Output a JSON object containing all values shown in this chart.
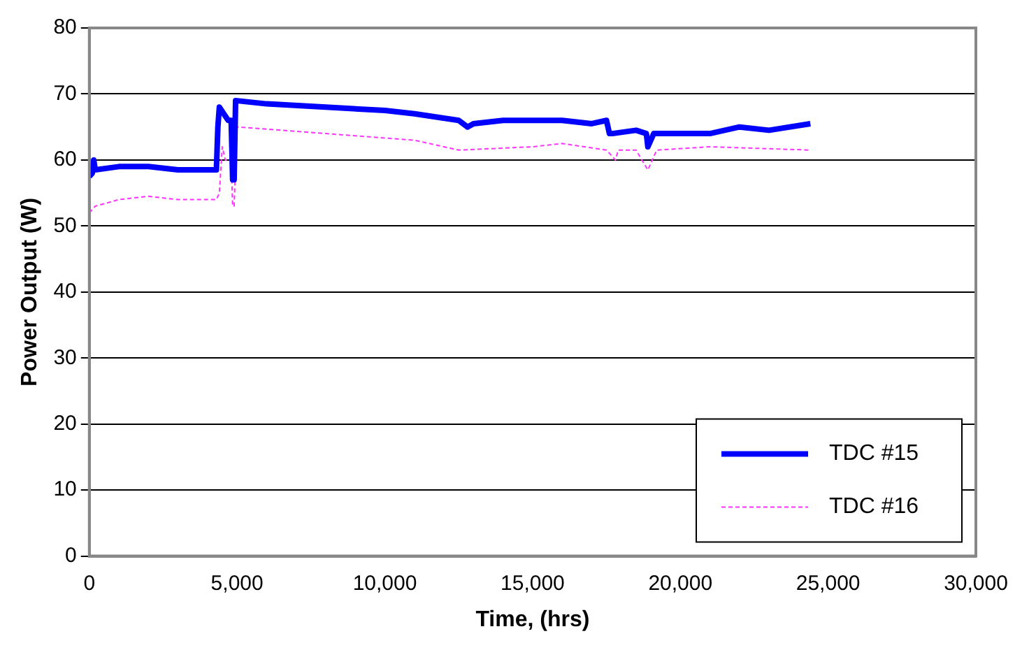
{
  "chart_data": {
    "type": "line",
    "xlabel": "Time, (hrs)",
    "ylabel": "Power Output (W)",
    "xlim": [
      0,
      30000
    ],
    "xticks": [
      {
        "value": 0,
        "label": "0"
      },
      {
        "value": 5000,
        "label": "5,000"
      },
      {
        "value": 10000,
        "label": "10,000"
      },
      {
        "value": 15000,
        "label": "15,000"
      },
      {
        "value": 20000,
        "label": "20,000"
      },
      {
        "value": 25000,
        "label": "25,000"
      },
      {
        "value": 30000,
        "label": "30,000"
      }
    ],
    "ylim": [
      0,
      80
    ],
    "yticks": [
      0,
      10,
      20,
      30,
      40,
      50,
      60,
      70,
      80
    ],
    "grid": "y",
    "legend": "bottom right",
    "marker": "none",
    "series": [
      {
        "name": "TDC #15",
        "color": "#0000ff",
        "line_style": "solid",
        "x": [
          0,
          100,
          150,
          200,
          1000,
          2000,
          3000,
          4300,
          4350,
          4400,
          4700,
          4800,
          4850,
          4900,
          4950,
          6000,
          8000,
          10000,
          11000,
          12500,
          12800,
          13000,
          14000,
          16000,
          17000,
          17500,
          17600,
          17700,
          18500,
          18850,
          18900,
          19100,
          21000,
          22000,
          23000,
          24400
        ],
        "values": [
          57.5,
          58,
          60,
          58.5,
          59,
          59,
          58.5,
          58.5,
          65,
          68,
          66,
          66,
          57,
          57,
          69,
          68.5,
          68,
          67.5,
          67,
          66,
          65,
          65.5,
          66,
          66,
          65.5,
          66,
          64,
          64,
          64.5,
          64,
          62,
          64,
          64,
          65,
          64.5,
          65.5
        ]
      },
      {
        "name": "TDC #16",
        "color": "#ff33ff",
        "line_style": "dashed",
        "x": [
          0,
          200,
          1000,
          2000,
          3000,
          4300,
          4400,
          4500,
          4600,
          4800,
          4850,
          4900,
          5000,
          8000,
          11000,
          12500,
          15000,
          16000,
          17500,
          17800,
          17900,
          18500,
          18900,
          19200,
          21000,
          24400
        ],
        "values": [
          52,
          53,
          54,
          54.5,
          54,
          54,
          55,
          62,
          60,
          60,
          53,
          53,
          65,
          64,
          63,
          61.5,
          62,
          62.5,
          61.5,
          60,
          61.5,
          61.5,
          58.5,
          61.5,
          62,
          61.5
        ]
      }
    ]
  }
}
